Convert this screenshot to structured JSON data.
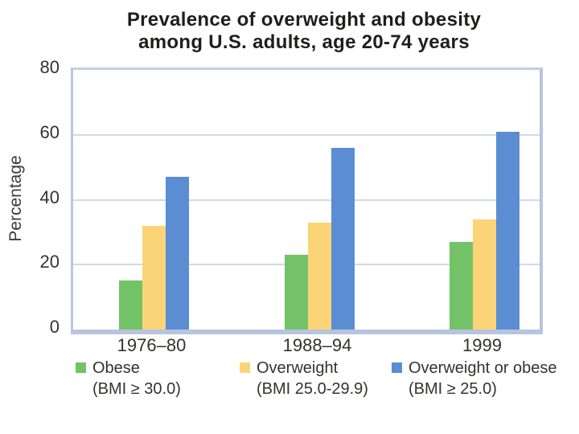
{
  "title": {
    "line1": "Prevalence of overweight and obesity",
    "line2": "among U.S. adults, age 20-74 years"
  },
  "chart_data": {
    "type": "bar",
    "title": "Prevalence of overweight and obesity among U.S. adults, age 20-74 years",
    "xlabel": "",
    "ylabel": "Percentage",
    "ylim": [
      0,
      80
    ],
    "yticks": [
      0,
      20,
      40,
      60,
      80
    ],
    "grid": true,
    "legend_position": "bottom",
    "categories": [
      "1976–80",
      "1988–94",
      "1999"
    ],
    "series": [
      {
        "name": "Obese",
        "sublabel": "(BMI ≥ 30.0)",
        "color": "#74c267",
        "values": [
          15,
          23,
          27
        ]
      },
      {
        "name": "Overweight",
        "sublabel": "(BMI 25.0-29.9)",
        "color": "#fbd478",
        "values": [
          32,
          33,
          34
        ]
      },
      {
        "name": "Overweight or obese",
        "sublabel": "(BMI ≥ 25.0)",
        "color": "#5b8dd2",
        "values": [
          47,
          56,
          61
        ]
      }
    ]
  },
  "colors": {
    "axis_border": "#b7c4df",
    "gridline": "#cfdae9",
    "title_text": "#201e1d",
    "label_text": "#343330",
    "background": "#ffffff"
  }
}
